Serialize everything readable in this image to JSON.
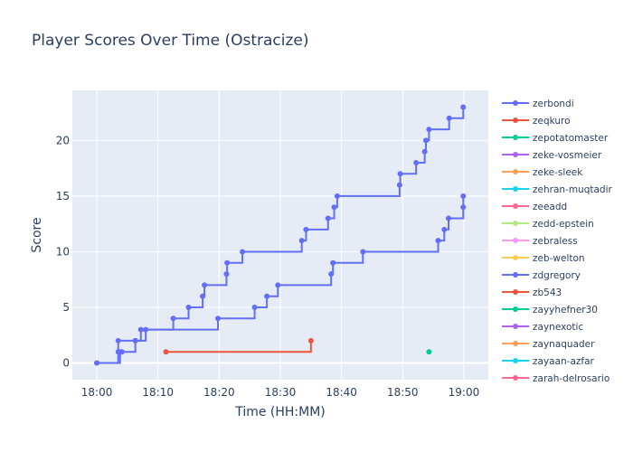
{
  "chart_data": {
    "type": "line",
    "line_shape": "step",
    "title": "Player Scores Over Time (Ostracize)",
    "xlabel": "Time (HH:MM)",
    "ylabel": "Score",
    "x_ticks": [
      "18:00",
      "18:10",
      "18:20",
      "18:30",
      "18:40",
      "18:50",
      "19:00"
    ],
    "y_ticks": [
      0,
      5,
      10,
      15,
      20
    ],
    "xlim": [
      "17:56",
      "19:04"
    ],
    "ylim": [
      -1.5,
      24.5
    ],
    "grid": true,
    "legend_position": "right",
    "background": "#e5ecf6",
    "series": [
      {
        "name": "zerbondi",
        "color": "#636efa",
        "points": [
          [
            "18:00",
            0
          ],
          [
            "18:03.5",
            1
          ],
          [
            "18:03.5",
            2
          ],
          [
            "18:06.3",
            2
          ],
          [
            "18:07.2",
            3
          ],
          [
            "18:12.5",
            4
          ],
          [
            "18:15",
            5
          ],
          [
            "18:17.3",
            6
          ],
          [
            "18:17.6",
            7
          ],
          [
            "18:21.2",
            8
          ],
          [
            "18:21.3",
            9
          ],
          [
            "18:23.8",
            10
          ],
          [
            "18:33.5",
            11
          ],
          [
            "18:34.2",
            12
          ],
          [
            "18:37.8",
            13
          ],
          [
            "18:38.8",
            14
          ],
          [
            "18:39.3",
            15
          ],
          [
            "18:49.5",
            16
          ],
          [
            "18:49.6",
            17
          ],
          [
            "18:52.2",
            18
          ],
          [
            "18:53.6",
            19
          ],
          [
            "18:53.8",
            20
          ],
          [
            "18:54.3",
            21
          ],
          [
            "18:57.6",
            22
          ],
          [
            "18:59.9",
            23
          ]
        ]
      },
      {
        "name": "zeqkuro",
        "color": "#ef553b",
        "points": [
          [
            "18:11.3",
            1
          ],
          [
            "18:35",
            2
          ]
        ]
      },
      {
        "name": "zepotatomaster",
        "color": "#00cc96",
        "points": [
          [
            "18:54.3",
            1
          ]
        ]
      },
      {
        "name": "zeke-vosmeier",
        "color": "#ab63fa",
        "points": []
      },
      {
        "name": "zeke-sleek",
        "color": "#ffa15a",
        "points": [
          [
            "18:00",
            0
          ]
        ]
      },
      {
        "name": "zehran-muqtadir",
        "color": "#19d3f3",
        "points": []
      },
      {
        "name": "zeeadd",
        "color": "#ff6692",
        "points": []
      },
      {
        "name": "zedd-epstein",
        "color": "#b6e880",
        "points": []
      },
      {
        "name": "zebraless",
        "color": "#ff97ff",
        "points": []
      },
      {
        "name": "zeb-welton",
        "color": "#fecb52",
        "points": [
          [
            "18:00",
            0
          ]
        ]
      },
      {
        "name": "zdgregory",
        "color": "#636efa",
        "points": [
          [
            "18:00",
            0
          ],
          [
            "18:03.8",
            1
          ],
          [
            "18:04.1",
            1
          ],
          [
            "18:06.3",
            2
          ],
          [
            "18:08",
            3
          ],
          [
            "18:19.8",
            4
          ],
          [
            "18:25.8",
            5
          ],
          [
            "18:27.8",
            6
          ],
          [
            "18:29.6",
            7
          ],
          [
            "18:38.3",
            8
          ],
          [
            "18:38.6",
            9
          ],
          [
            "18:43.5",
            10
          ],
          [
            "18:55.8",
            11
          ],
          [
            "18:56.8",
            12
          ],
          [
            "18:57.5",
            13
          ],
          [
            "18:59.9",
            14
          ],
          [
            "18:59.9",
            15
          ]
        ]
      },
      {
        "name": "zb543",
        "color": "#ef553b",
        "points": []
      },
      {
        "name": "zayyhefner30",
        "color": "#00cc96",
        "points": []
      },
      {
        "name": "zaynexotic",
        "color": "#ab63fa",
        "points": []
      },
      {
        "name": "zaynaquader",
        "color": "#ffa15a",
        "points": []
      },
      {
        "name": "zayaan-azfar",
        "color": "#19d3f3",
        "points": []
      },
      {
        "name": "zarah-delrosario",
        "color": "#ff6692",
        "points": []
      }
    ]
  }
}
